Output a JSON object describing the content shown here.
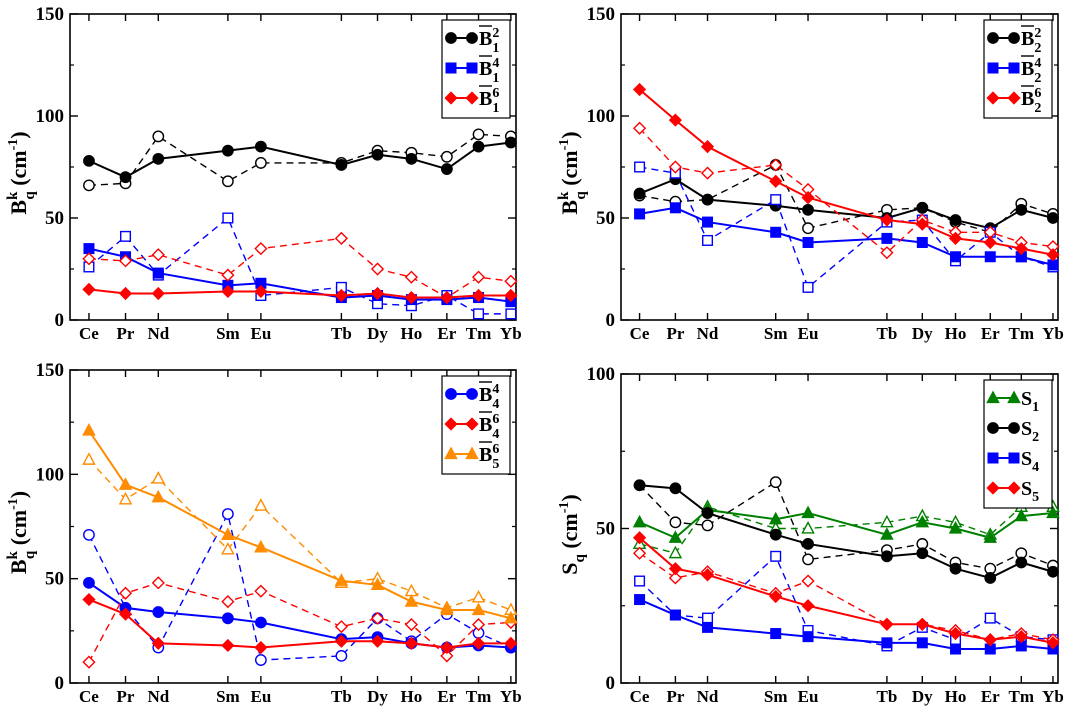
{
  "categories": [
    "Ce",
    "Pr",
    "Nd",
    "Sm",
    "Eu",
    "Tb",
    "Dy",
    "Ho",
    "Er",
    "Tm",
    "Yb"
  ],
  "chart_data": [
    {
      "type": "line",
      "panel": "top-left",
      "ylabel": "B",
      "ylabel_sup": "k",
      "ylabel_sub": "q",
      "ylabel_unit": " (cm",
      "ylabel_unit_sup": "-1",
      "ylabel_close": ")",
      "ylim": [
        0,
        150
      ],
      "yticks": [
        "0",
        "50",
        "100",
        "150"
      ],
      "legend_position": "top-right",
      "series": [
        {
          "name": "B",
          "sup": "2",
          "sub": "1",
          "overline": true,
          "color": "#000000",
          "marker": "circle",
          "solid": [
            78,
            70,
            79,
            83,
            85,
            76,
            81,
            79,
            74,
            85,
            87
          ],
          "dashed": [
            66,
            67,
            90,
            68,
            77,
            77,
            83,
            82,
            80,
            91,
            90
          ]
        },
        {
          "name": "B",
          "sup": "4",
          "sub": "1",
          "overline": true,
          "color": "#0000ff",
          "marker": "square",
          "solid": [
            35,
            31,
            23,
            17,
            18,
            11,
            12,
            10,
            10,
            11,
            9
          ],
          "dashed": [
            26,
            41,
            22,
            50,
            12,
            16,
            8,
            7,
            12,
            3,
            3
          ]
        },
        {
          "name": "B",
          "sup": "6",
          "sub": "1",
          "overline": true,
          "color": "#ff0000",
          "marker": "diamond",
          "solid": [
            15,
            13,
            13,
            14,
            14,
            12,
            13,
            11,
            11,
            12,
            12
          ],
          "dashed": [
            30,
            29,
            32,
            22,
            35,
            40,
            25,
            21,
            11,
            21,
            19
          ]
        }
      ]
    },
    {
      "type": "line",
      "panel": "top-right",
      "ylabel": "B",
      "ylabel_sup": "k",
      "ylabel_sub": "q",
      "ylabel_unit": " (cm",
      "ylabel_unit_sup": "-1",
      "ylabel_close": ")",
      "ylim": [
        0,
        150
      ],
      "yticks": [
        "0",
        "50",
        "100",
        "150"
      ],
      "legend_position": "top-right",
      "series": [
        {
          "name": "B",
          "sup": "2",
          "sub": "2",
          "overline": true,
          "color": "#000000",
          "marker": "circle",
          "solid": [
            62,
            69,
            59,
            56,
            54,
            50,
            55,
            49,
            45,
            54,
            50
          ],
          "dashed": [
            61,
            58,
            59,
            76,
            45,
            54,
            55,
            48,
            43,
            57,
            52
          ]
        },
        {
          "name": "B",
          "sup": "4",
          "sub": "2",
          "overline": true,
          "color": "#0000ff",
          "marker": "square",
          "solid": [
            52,
            55,
            48,
            43,
            38,
            40,
            38,
            31,
            31,
            31,
            27
          ],
          "dashed": [
            75,
            72,
            39,
            59,
            16,
            48,
            49,
            29,
            43,
            31,
            26
          ]
        },
        {
          "name": "B",
          "sup": "6",
          "sub": "2",
          "overline": true,
          "color": "#ff0000",
          "marker": "diamond",
          "solid": [
            113,
            98,
            85,
            68,
            60,
            49,
            47,
            40,
            38,
            35,
            32
          ],
          "dashed": [
            94,
            75,
            72,
            76,
            64,
            33,
            49,
            43,
            43,
            38,
            36
          ]
        }
      ]
    },
    {
      "type": "line",
      "panel": "bottom-left",
      "ylabel": "B",
      "ylabel_sup": "k",
      "ylabel_sub": "q",
      "ylabel_unit": " (cm",
      "ylabel_unit_sup": "-1",
      "ylabel_close": ")",
      "ylim": [
        0,
        150
      ],
      "yticks": [
        "0",
        "50",
        "100",
        "150"
      ],
      "legend_position": "top-right",
      "series": [
        {
          "name": "B",
          "sup": "4",
          "sub": "4",
          "overline": true,
          "color": "#0000ff",
          "marker": "circle",
          "solid": [
            48,
            36,
            34,
            31,
            29,
            21,
            22,
            19,
            17,
            18,
            17
          ],
          "dashed": [
            71,
            36,
            17,
            81,
            11,
            13,
            31,
            20,
            33,
            24,
            17
          ]
        },
        {
          "name": "B",
          "sup": "6",
          "sub": "4",
          "overline": true,
          "color": "#ff0000",
          "marker": "diamond",
          "solid": [
            40,
            33,
            19,
            18,
            17,
            20,
            20,
            19,
            17,
            19,
            19
          ],
          "dashed": [
            10,
            43,
            48,
            39,
            44,
            27,
            31,
            28,
            13,
            28,
            29
          ]
        },
        {
          "name": "B",
          "sup": "6",
          "sub": "5",
          "overline": true,
          "color": "#ff8c00",
          "marker": "triangle",
          "solid": [
            121,
            95,
            89,
            71,
            65,
            49,
            47,
            39,
            35,
            35,
            31
          ],
          "dashed": [
            107,
            88,
            98,
            64,
            85,
            48,
            50,
            44,
            36,
            41,
            35
          ]
        }
      ]
    },
    {
      "type": "line",
      "panel": "bottom-right",
      "ylabel": "S",
      "ylabel_sup": "",
      "ylabel_sub": "q",
      "ylabel_unit": " (cm",
      "ylabel_unit_sup": "-1",
      "ylabel_close": ")",
      "ylim": [
        0,
        100
      ],
      "yticks": [
        "0",
        "50",
        "100"
      ],
      "legend_position": "top-right",
      "series": [
        {
          "name": "S",
          "sup": "",
          "sub": "1",
          "overline": false,
          "color": "#008000",
          "marker": "triangle",
          "solid": [
            52,
            47,
            56,
            53,
            55,
            48,
            52,
            50,
            47,
            54,
            55
          ],
          "dashed": [
            45,
            42,
            57,
            50,
            50,
            52,
            54,
            52,
            48,
            57,
            57
          ]
        },
        {
          "name": "S",
          "sup": "",
          "sub": "2",
          "overline": false,
          "color": "#000000",
          "marker": "circle",
          "solid": [
            64,
            63,
            55,
            48,
            45,
            41,
            42,
            37,
            34,
            39,
            36
          ],
          "dashed": [
            64,
            52,
            51,
            65,
            40,
            43,
            45,
            39,
            37,
            42,
            38
          ]
        },
        {
          "name": "S",
          "sup": "",
          "sub": "4",
          "overline": false,
          "color": "#0000ff",
          "marker": "square",
          "solid": [
            27,
            22,
            18,
            16,
            15,
            13,
            13,
            11,
            11,
            12,
            11
          ],
          "dashed": [
            33,
            22,
            21,
            41,
            17,
            12,
            18,
            14,
            21,
            15,
            14
          ]
        },
        {
          "name": "S",
          "sup": "",
          "sub": "5",
          "overline": false,
          "color": "#ff0000",
          "marker": "diamond",
          "solid": [
            47,
            37,
            35,
            28,
            25,
            19,
            19,
            16,
            14,
            15,
            13
          ],
          "dashed": [
            42,
            34,
            36,
            29,
            33,
            19,
            19,
            17,
            14,
            16,
            14
          ]
        }
      ]
    }
  ]
}
